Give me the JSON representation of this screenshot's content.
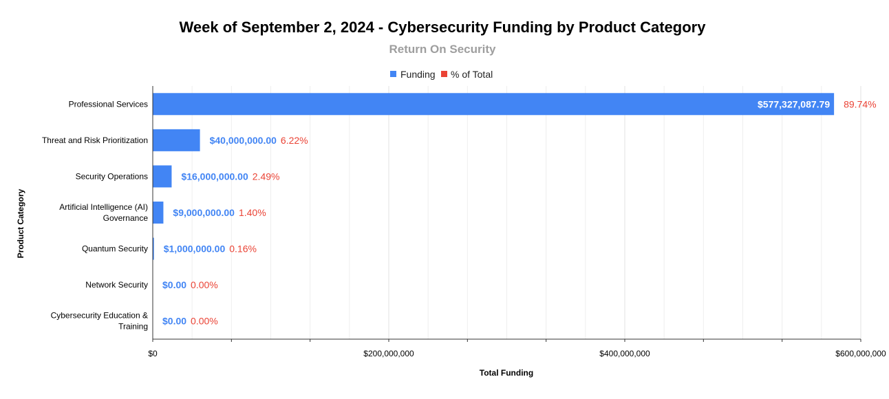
{
  "colors": {
    "funding": "#4285F4",
    "percent": "#EA4335",
    "title": "#000000",
    "subtitle": "#9E9E9E",
    "grid": "#E0E0E0",
    "axis": "#333333",
    "label_inside": "#FFFFFF"
  },
  "chart_data": {
    "type": "bar",
    "orientation": "horizontal",
    "title": "Week of September 2, 2024 - Cybersecurity Funding by Product Category",
    "subtitle": "Return On Security",
    "xlabel": "Total Funding",
    "ylabel": "Product Category",
    "xlim": [
      0,
      600000000
    ],
    "xticks": [
      0,
      200000000,
      400000000,
      600000000
    ],
    "xtick_labels": [
      "$0",
      "$200,000,000",
      "$400,000,000",
      "$600,000,000"
    ],
    "grid": true,
    "legend_position": "top-center",
    "legend": [
      {
        "name": "Funding",
        "color": "#4285F4"
      },
      {
        "name": "% of Total",
        "color": "#EA4335"
      }
    ],
    "categories": [
      [
        "Professional Services"
      ],
      [
        "Threat and Risk Prioritization"
      ],
      [
        "Security Operations"
      ],
      [
        "Artificial Intelligence (AI)",
        "Governance"
      ],
      [
        "Quantum Security"
      ],
      [
        "Network Security"
      ],
      [
        "Cybersecurity Education &",
        "Training"
      ]
    ],
    "series": [
      {
        "name": "Funding",
        "values": [
          577327087.79,
          40000000,
          16000000,
          9000000,
          1000000,
          0,
          0
        ],
        "labels": [
          "$577,327,087.79",
          "$40,000,000.00",
          "$16,000,000.00",
          "$9,000,000.00",
          "$1,000,000.00",
          "$0.00",
          "$0.00"
        ]
      },
      {
        "name": "% of Total",
        "values": [
          89.74,
          6.22,
          2.49,
          1.4,
          0.16,
          0.0,
          0.0
        ],
        "labels": [
          "89.74%",
          "6.22%",
          "2.49%",
          "1.40%",
          "0.16%",
          "0.00%",
          "0.00%"
        ]
      }
    ]
  }
}
